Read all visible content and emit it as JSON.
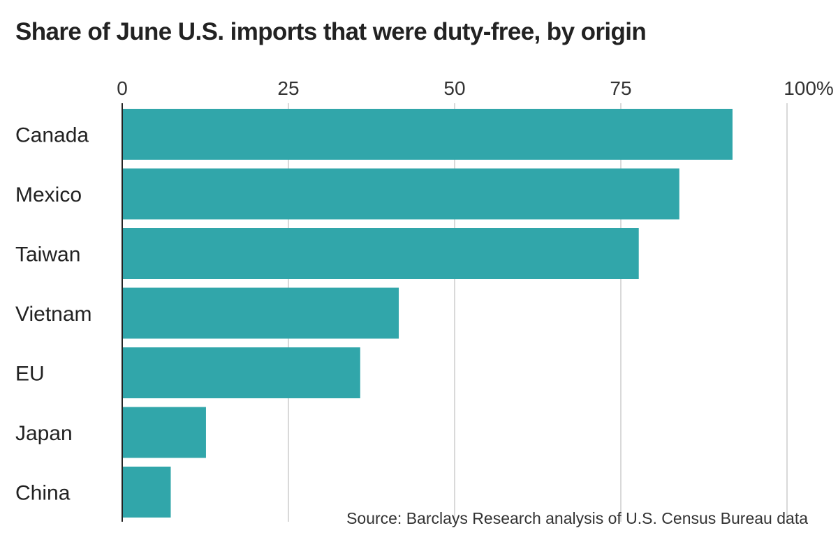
{
  "chart_data": {
    "type": "bar",
    "orientation": "horizontal",
    "title": "Share of June U.S. imports that were duty-free, by origin",
    "categories": [
      "Canada",
      "Mexico",
      "Taiwan",
      "Vietnam",
      "EU",
      "Japan",
      "China"
    ],
    "values": [
      91.8,
      83.8,
      77.7,
      41.6,
      35.8,
      12.6,
      7.3
    ],
    "xlim": [
      0,
      100
    ],
    "ticks": [
      0,
      25,
      50,
      75,
      100
    ],
    "tick_labels": [
      "0",
      "25",
      "50",
      "75",
      "100%"
    ],
    "xlabel": "",
    "ylabel": "",
    "grid": true,
    "bar_color": "#31a6aa",
    "grid_color": "#d9d9d9",
    "axis_color": "#222222",
    "source": "Source: Barclays Research analysis of U.S. Census Bureau data"
  }
}
